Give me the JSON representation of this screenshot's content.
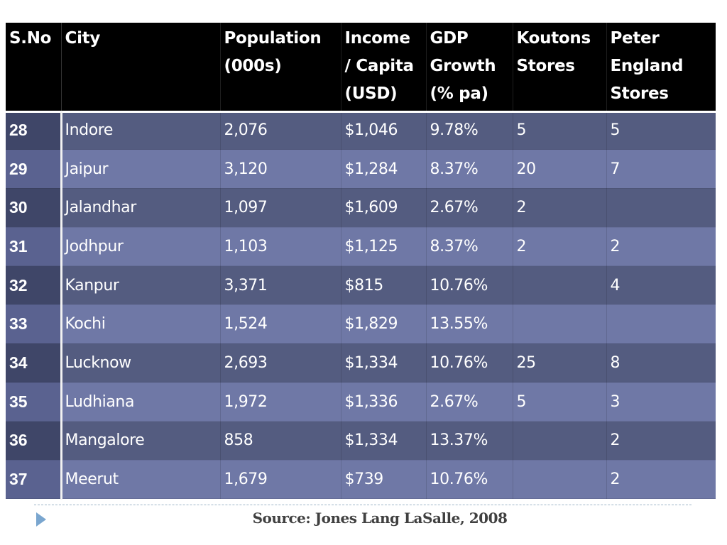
{
  "table": {
    "headers": {
      "sno": "S.No",
      "city": "City",
      "population": [
        "Population",
        "(000s)"
      ],
      "income": [
        "Income",
        "/ Capita",
        "(USD)"
      ],
      "gdp": [
        "GDP",
        "Growth",
        "(% pa)"
      ],
      "koutons": [
        "Koutons",
        "Stores"
      ],
      "peter_england": [
        "Peter",
        "England",
        "Stores"
      ]
    },
    "rows": [
      {
        "sno": "28",
        "city": "Indore",
        "population": "2,076",
        "income": "$1,046",
        "gdp": "9.78%",
        "koutons": "5",
        "peter_england": "5"
      },
      {
        "sno": "29",
        "city": "Jaipur",
        "population": "3,120",
        "income": "$1,284",
        "gdp": "8.37%",
        "koutons": "20",
        "peter_england": "7"
      },
      {
        "sno": "30",
        "city": "Jalandhar",
        "population": "1,097",
        "income": "$1,609",
        "gdp": "2.67%",
        "koutons": "2",
        "peter_england": ""
      },
      {
        "sno": "31",
        "city": "Jodhpur",
        "population": "1,103",
        "income": "$1,125",
        "gdp": "8.37%",
        "koutons": "2",
        "peter_england": "2"
      },
      {
        "sno": "32",
        "city": "Kanpur",
        "population": "3,371",
        "income": "$815",
        "gdp": "10.76%",
        "koutons": "",
        "peter_england": "4"
      },
      {
        "sno": "33",
        "city": "Kochi",
        "population": "1,524",
        "income": "$1,829",
        "gdp": "13.55%",
        "koutons": "",
        "peter_england": ""
      },
      {
        "sno": "34",
        "city": "Lucknow",
        "population": "2,693",
        "income": "$1,334",
        "gdp": "10.76%",
        "koutons": "25",
        "peter_england": "8"
      },
      {
        "sno": "35",
        "city": "Ludhiana",
        "population": "1,972",
        "income": "$1,336",
        "gdp": "2.67%",
        "koutons": "5",
        "peter_england": "3"
      },
      {
        "sno": "36",
        "city": "Mangalore",
        "population": "858",
        "income": "$1,334",
        "gdp": "13.37%",
        "koutons": "",
        "peter_england": "2"
      },
      {
        "sno": "37",
        "city": "Meerut",
        "population": "1,679",
        "income": "$739",
        "gdp": "10.76%",
        "koutons": "",
        "peter_england": "2"
      }
    ]
  },
  "footer": {
    "source": "Source: Jones Lang LaSalle, 2008",
    "bullet_icon": "triangle-right-icon"
  },
  "colors": {
    "header_bg": "#000000",
    "row_dark": "#545c80",
    "row_light": "#6f78a6",
    "text": "#ffffff",
    "footer_accent": "#7aa6cf"
  }
}
